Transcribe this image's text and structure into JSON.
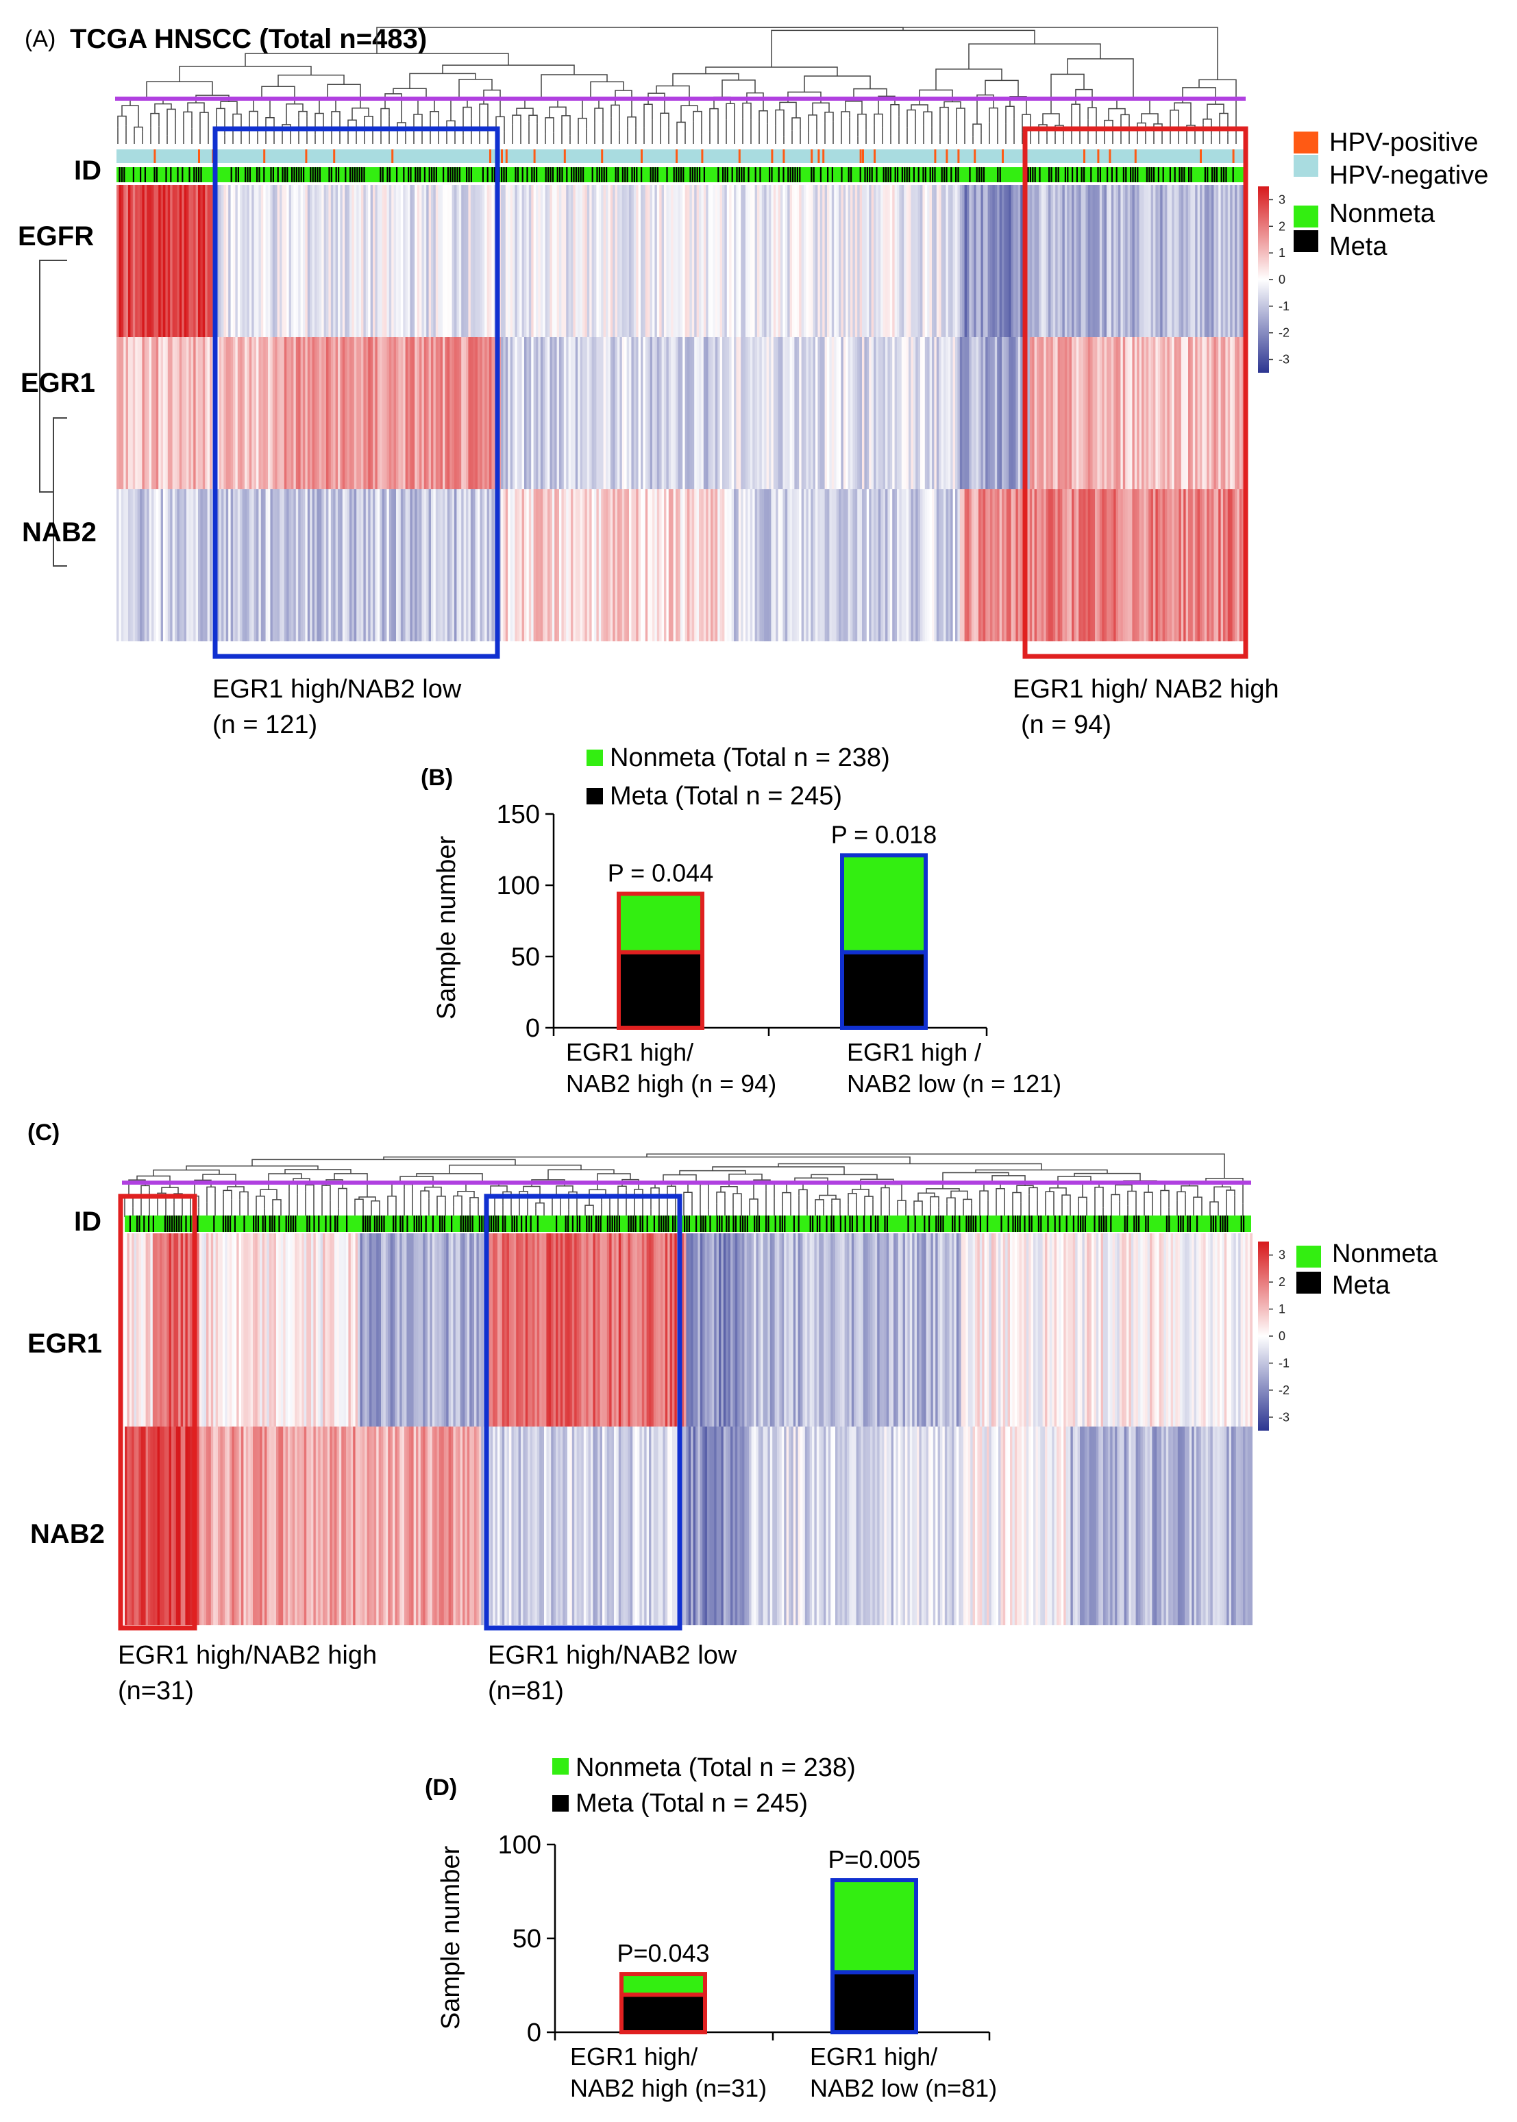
{
  "colors": {
    "red": "#e02020",
    "blue": "#1030d0",
    "green": "#33ee11",
    "black": "#000000",
    "hpv_pos": "#ff5a14",
    "hpv_neg": "#a9dce0",
    "dendro_line": "#b040e0",
    "heat_high": "#d7191c",
    "heat_low": "#2c3591"
  },
  "panelA": {
    "label": "(A)",
    "title": "TCGA  HNSCC (Total n=483)",
    "id_label": "ID",
    "genes": [
      "EGFR",
      "EGR1",
      "NAB2"
    ],
    "legend": [
      {
        "label": "HPV-positive",
        "color": "#ff5a14"
      },
      {
        "label": "HPV-negative",
        "color": "#a9dce0"
      },
      {
        "label": "Nonmeta",
        "color": "#33ee11"
      },
      {
        "label": "Meta",
        "color": "#000000"
      }
    ],
    "scale_ticks": [
      "3",
      "2",
      "1",
      "0",
      "-1",
      "-2",
      "-3"
    ],
    "box_blue": {
      "line1": "EGR1 high/NAB2 low",
      "line2": "(n = 121)"
    },
    "box_red": {
      "line1": "EGR1 high/ NAB2 high",
      "line2": "(n = 94)"
    }
  },
  "panelC": {
    "label": "(C)",
    "id_label": "ID",
    "genes": [
      "EGR1",
      "NAB2"
    ],
    "legend": [
      {
        "label": "Nonmeta",
        "color": "#33ee11"
      },
      {
        "label": "Meta",
        "color": "#000000"
      }
    ],
    "scale_ticks": [
      "3",
      "2",
      "1",
      "0",
      "-1",
      "-2",
      "-3"
    ],
    "box_red": {
      "line1": "EGR1 high/NAB2 high",
      "line2": "(n=31)"
    },
    "box_blue": {
      "line1": "EGR1 high/NAB2 low",
      "line2": "(n=81)"
    }
  },
  "chart_data": [
    {
      "type": "bar",
      "panel": "(B)",
      "stacked": true,
      "legend": [
        "Nonmeta (Total n = 238)",
        "Meta (Total n = 245)"
      ],
      "ylabel": "Sample number",
      "ylim": [
        0,
        150
      ],
      "yticks": [
        0,
        50,
        100,
        150
      ],
      "categories": [
        {
          "line1": "EGR1 high/",
          "line2": "NAB2 high (n = 94)"
        },
        {
          "line1": "EGR1 high /",
          "line2": "NAB2 low (n = 121)"
        }
      ],
      "series": [
        {
          "name": "Meta",
          "values": [
            53,
            53
          ]
        },
        {
          "name": "Nonmeta",
          "values": [
            41,
            68
          ]
        }
      ],
      "bar_outline": [
        "red",
        "blue"
      ],
      "annotations": [
        "P = 0.044",
        "P = 0.018"
      ]
    },
    {
      "type": "bar",
      "panel": "(D)",
      "stacked": true,
      "legend": [
        "Nonmeta (Total n = 238)",
        "Meta (Total n = 245)"
      ],
      "ylabel": "Sample number",
      "ylim": [
        0,
        100
      ],
      "yticks": [
        0,
        50,
        100
      ],
      "categories": [
        {
          "line1": "EGR1 high/",
          "line2": "NAB2 high (n=31)"
        },
        {
          "line1": "EGR1 high/",
          "line2": "NAB2 low (n=81)"
        }
      ],
      "series": [
        {
          "name": "Meta",
          "values": [
            20,
            32
          ]
        },
        {
          "name": "Nonmeta",
          "values": [
            11,
            49
          ]
        }
      ],
      "bar_outline": [
        "red",
        "blue"
      ],
      "annotations": [
        "P=0.043",
        "P=0.005"
      ]
    }
  ]
}
